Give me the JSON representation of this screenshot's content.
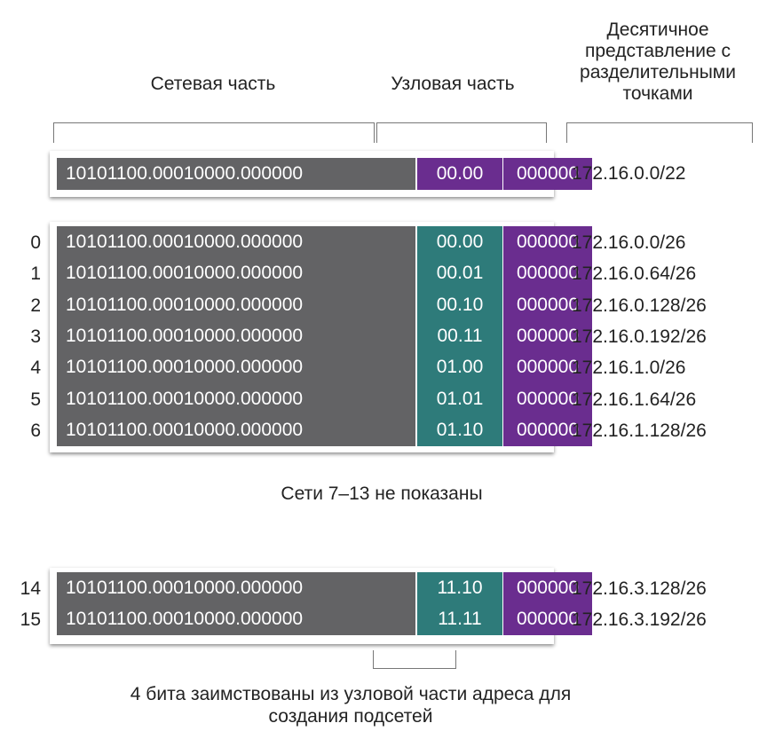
{
  "headers": {
    "network": "Сетевая часть",
    "host": "Узловая часть",
    "decimal": "Десятичное представление с разделительными точками"
  },
  "base": {
    "network_bits": "10101100.00010000.000000",
    "host_bits": "00.00",
    "remaining_bits": "000000",
    "decimal": "172.16.0.0/22"
  },
  "subnets": [
    {
      "index": "0",
      "network_bits": "10101100.00010000.000000",
      "host_bits": "00.00",
      "remaining_bits": "000000",
      "decimal": "172.16.0.0/26"
    },
    {
      "index": "1",
      "network_bits": "10101100.00010000.000000",
      "host_bits": "00.01",
      "remaining_bits": "000000",
      "decimal": "172.16.0.64/26"
    },
    {
      "index": "2",
      "network_bits": "10101100.00010000.000000",
      "host_bits": "00.10",
      "remaining_bits": "000000",
      "decimal": "172.16.0.128/26"
    },
    {
      "index": "3",
      "network_bits": "10101100.00010000.000000",
      "host_bits": "00.11",
      "remaining_bits": "000000",
      "decimal": "172.16.0.192/26"
    },
    {
      "index": "4",
      "network_bits": "10101100.00010000.000000",
      "host_bits": "01.00",
      "remaining_bits": "000000",
      "decimal": "172.16.1.0/26"
    },
    {
      "index": "5",
      "network_bits": "10101100.00010000.000000",
      "host_bits": "01.01",
      "remaining_bits": "000000",
      "decimal": "172.16.1.64/26"
    },
    {
      "index": "6",
      "network_bits": "10101100.00010000.000000",
      "host_bits": "01.10",
      "remaining_bits": "000000",
      "decimal": "172.16.1.128/26"
    }
  ],
  "hidden_note": "Сети 7–13 не показаны",
  "last_subnets": [
    {
      "index": "14",
      "network_bits": "10101100.00010000.000000",
      "host_bits": "11.10",
      "remaining_bits": "000000",
      "decimal": "172.16.3.128/26"
    },
    {
      "index": "15",
      "network_bits": "10101100.00010000.000000",
      "host_bits": "11.11",
      "remaining_bits": "000000",
      "decimal": "172.16.3.192/26"
    }
  ],
  "borrow_note_line1": "4 бита заимствованы из узловой части адреса для",
  "borrow_note_line2": "создания подсетей",
  "colors": {
    "network": "#636365",
    "host_purple": "#6a2d8f",
    "borrowed_teal": "#2e7b7a"
  }
}
